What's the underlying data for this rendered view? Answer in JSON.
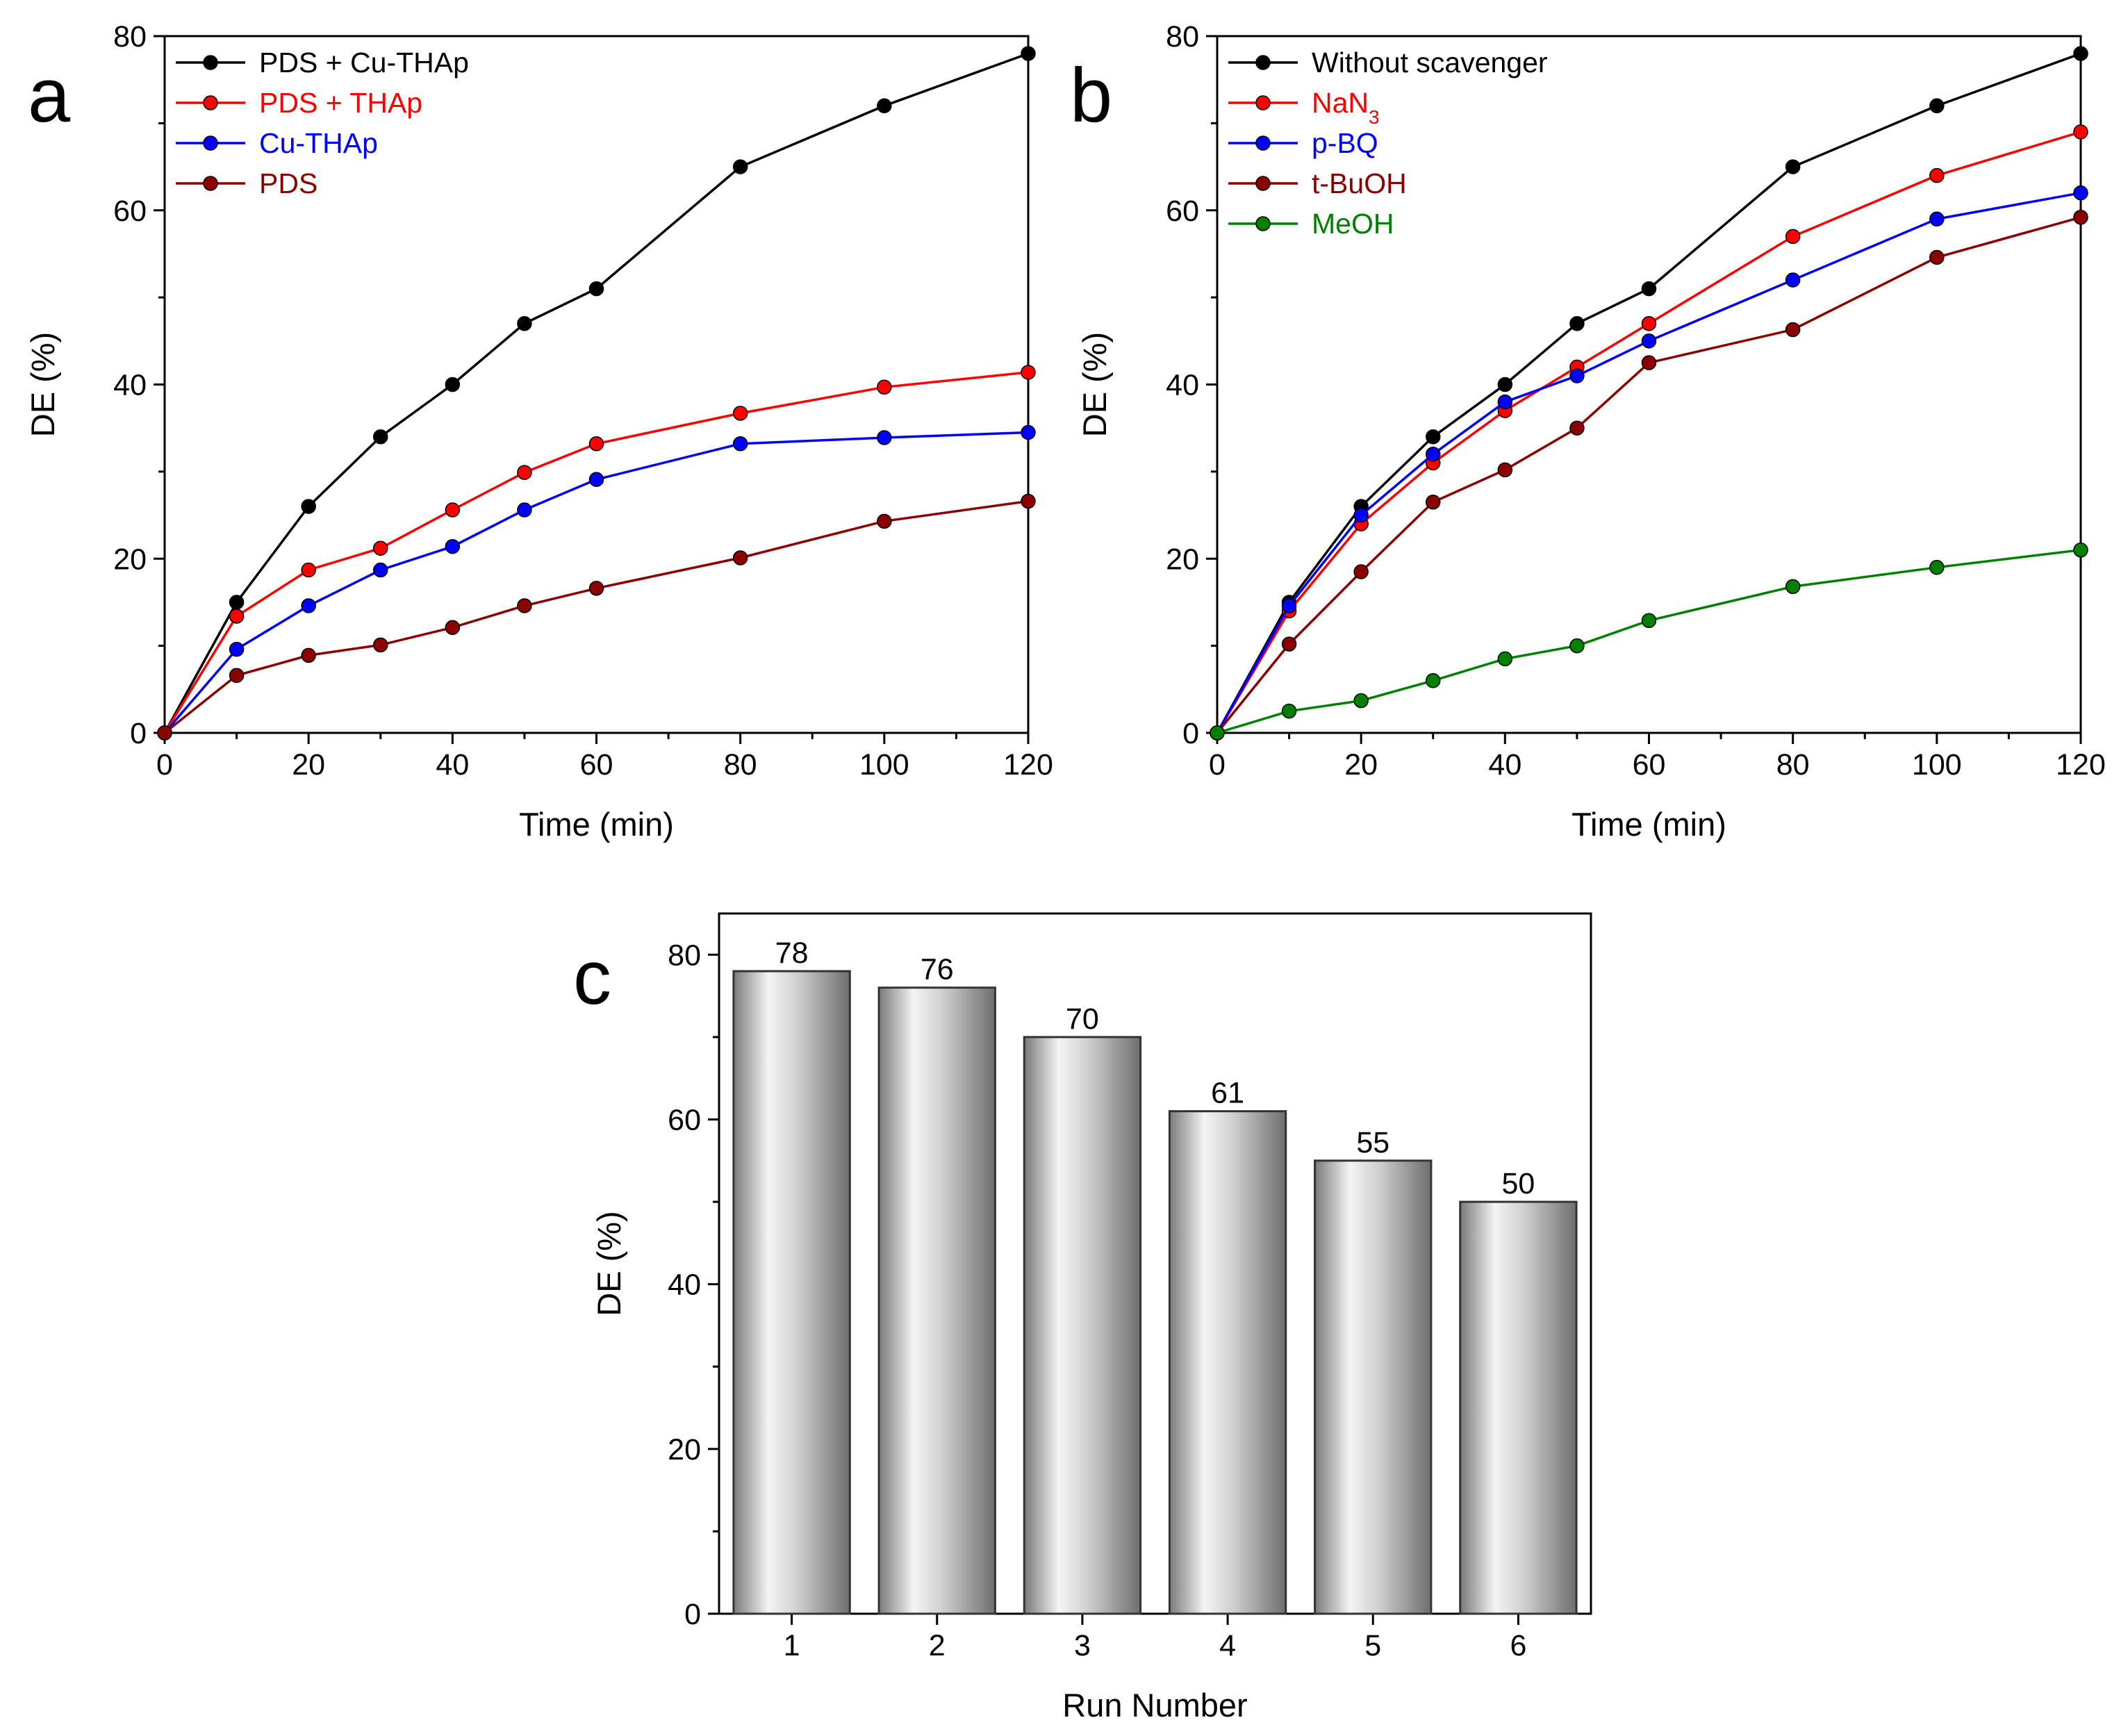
{
  "chart_data": [
    {
      "panel": "a",
      "type": "line",
      "xlabel": "Time (min)",
      "ylabel": "DE (%)",
      "xlim": [
        0,
        120
      ],
      "ylim": [
        0,
        80
      ],
      "xticks": [
        0,
        20,
        40,
        60,
        80,
        100,
        120
      ],
      "yticks": [
        0,
        20,
        40,
        60,
        80
      ],
      "legend_position": "top-left",
      "x": [
        0,
        10,
        20,
        30,
        40,
        50,
        60,
        80,
        100,
        120
      ],
      "series": [
        {
          "name": "PDS + Cu-THAp",
          "color": "#000000",
          "values": [
            0,
            15,
            26,
            34,
            40,
            47,
            51,
            65,
            72,
            78
          ]
        },
        {
          "name": "PDS + THAp",
          "color": "#ff0000",
          "values": [
            0,
            13.4,
            18.7,
            21.2,
            25.6,
            29.9,
            33.2,
            36.7,
            39.7,
            41.4
          ]
        },
        {
          "name": "Cu-THAp",
          "color": "#0000ff",
          "values": [
            0,
            9.6,
            14.6,
            18.7,
            21.4,
            25.6,
            29.1,
            33.2,
            33.9,
            34.5
          ]
        },
        {
          "name": "PDS",
          "color": "#8b0000",
          "values": [
            0,
            6.6,
            8.9,
            10.1,
            12.1,
            14.6,
            16.6,
            20.1,
            24.3,
            26.6
          ]
        }
      ]
    },
    {
      "panel": "b",
      "type": "line",
      "xlabel": "Time (min)",
      "ylabel": "DE (%)",
      "xlim": [
        0,
        120
      ],
      "ylim": [
        0,
        80
      ],
      "xticks": [
        0,
        20,
        40,
        60,
        80,
        100,
        120
      ],
      "yticks": [
        0,
        20,
        40,
        60,
        80
      ],
      "legend_position": "top-left",
      "x": [
        0,
        10,
        20,
        30,
        40,
        50,
        60,
        80,
        100,
        120
      ],
      "series": [
        {
          "name": "Without scavenger",
          "subscript": "",
          "color": "#000000",
          "values": [
            0,
            15,
            26,
            34,
            40,
            47,
            51,
            65,
            72,
            78
          ]
        },
        {
          "name": "NaN",
          "subscript": "3",
          "color": "#ff0000",
          "values": [
            0,
            14,
            24,
            31,
            37,
            42,
            47,
            57,
            64,
            69
          ]
        },
        {
          "name": "p-BQ",
          "subscript": "",
          "color": "#0000ff",
          "values": [
            0,
            14.6,
            25,
            32,
            38,
            41,
            45,
            52,
            59,
            62
          ]
        },
        {
          "name": "t-BuOH",
          "subscript": "",
          "color": "#8b0000",
          "values": [
            0,
            10.2,
            18.5,
            26.5,
            30.2,
            35,
            42.5,
            46.3,
            54.6,
            59.2
          ]
        },
        {
          "name": "MeOH",
          "subscript": "",
          "color": "#008000",
          "values": [
            0,
            2.5,
            3.7,
            6,
            8.5,
            10,
            12.9,
            16.8,
            19,
            21
          ]
        }
      ]
    },
    {
      "panel": "c",
      "type": "bar",
      "xlabel": "Run Number",
      "ylabel": "DE (%)",
      "ylim": [
        0,
        85
      ],
      "yticks": [
        0,
        20,
        40,
        60,
        80
      ],
      "categories": [
        "1",
        "2",
        "3",
        "4",
        "5",
        "6"
      ],
      "values": [
        78,
        76,
        70,
        61,
        55,
        50
      ],
      "data_labels": [
        "78",
        "76",
        "70",
        "61",
        "55",
        "50"
      ]
    }
  ]
}
